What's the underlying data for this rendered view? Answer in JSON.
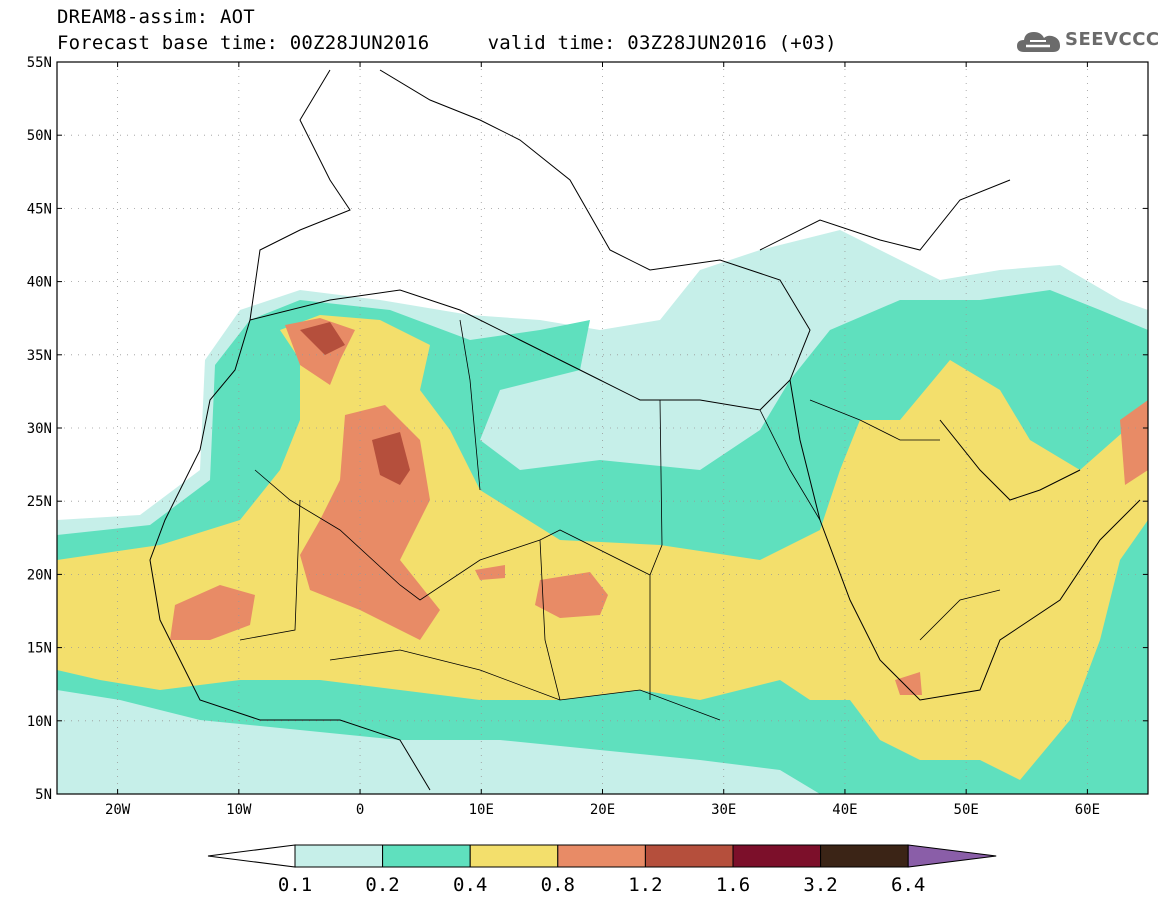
{
  "title": {
    "line1": "DREAM8-assim: AOT",
    "line2": "Forecast base time: 00Z28JUN2016     valid time: 03Z28JUN2016 (+03)"
  },
  "logo": {
    "text": "SEEVCCC",
    "icon": "cloud-icon"
  },
  "map": {
    "lon_range": [
      -25,
      65
    ],
    "lat_range": [
      5,
      55
    ],
    "lat_ticks": [
      "5N",
      "10N",
      "15N",
      "20N",
      "25N",
      "30N",
      "35N",
      "40N",
      "45N",
      "50N",
      "55N"
    ],
    "lon_ticks": [
      "20W",
      "10W",
      "0",
      "10E",
      "20E",
      "30E",
      "40E",
      "50E",
      "60E"
    ],
    "grid": "dotted",
    "layers": [
      "country-borders",
      "coastlines",
      "aot-contours"
    ]
  },
  "colorbar": {
    "levels": [
      "0.1",
      "0.2",
      "0.4",
      "0.8",
      "1.2",
      "1.6",
      "3.2",
      "6.4"
    ],
    "colors": [
      "#ffffff",
      "#c6efe9",
      "#5fe0be",
      "#f3df6c",
      "#e88b66",
      "#b54f3c",
      "#7c0f2a",
      "#3b2416",
      "#8a5ea8"
    ],
    "extend": "both"
  }
}
